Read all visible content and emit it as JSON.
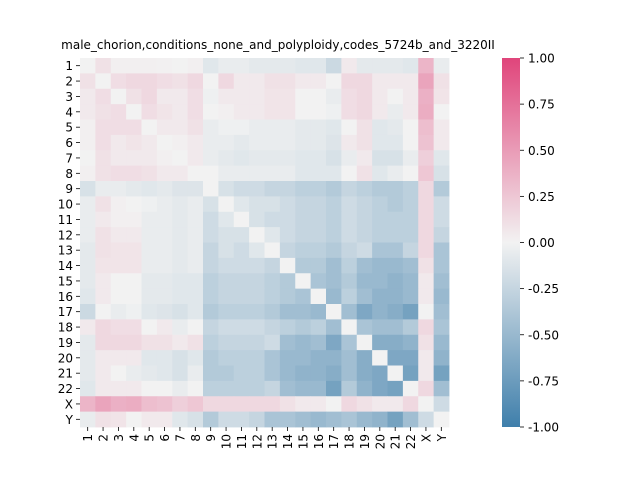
{
  "chart_data": {
    "type": "heatmap",
    "title": "male_chorion,conditions_none_and_polyploidy,codes_5724b_and_3220II",
    "xlabel": "",
    "ylabel": "",
    "labels": [
      "1",
      "2",
      "3",
      "4",
      "5",
      "6",
      "7",
      "8",
      "9",
      "10",
      "11",
      "12",
      "13",
      "14",
      "15",
      "16",
      "17",
      "18",
      "19",
      "20",
      "21",
      "22",
      "X",
      "Y"
    ],
    "colorbar": {
      "vmin": -1.0,
      "vmax": 1.0,
      "ticks": [
        "-1.00",
        "-0.75",
        "-0.50",
        "-0.25",
        "0.00",
        "0.25",
        "0.50",
        "0.75",
        "1.00"
      ],
      "tick_values": [
        -1.0,
        -0.75,
        -0.5,
        -0.25,
        0.0,
        0.25,
        0.5,
        0.75,
        1.0
      ],
      "colors": {
        "negative": "#3f7fab",
        "center": "#f2f2f2",
        "positive": "#e0457b"
      }
    },
    "matrix": [
      [
        0.0,
        0.1,
        0.02,
        0.02,
        0.02,
        0.01,
        0.0,
        0.02,
        -0.1,
        -0.05,
        -0.05,
        -0.08,
        -0.08,
        -0.08,
        -0.1,
        -0.1,
        -0.22,
        0.05,
        -0.08,
        -0.08,
        -0.08,
        -0.1,
        0.35,
        -0.05
      ],
      [
        0.1,
        0.0,
        0.12,
        0.15,
        0.15,
        0.12,
        0.1,
        0.15,
        0.0,
        0.15,
        0.05,
        0.05,
        0.1,
        0.1,
        0.05,
        0.05,
        0.0,
        0.15,
        0.15,
        0.05,
        0.05,
        0.05,
        0.45,
        0.1
      ],
      [
        0.05,
        0.12,
        0.0,
        0.1,
        0.15,
        0.05,
        0.05,
        0.12,
        -0.02,
        0.05,
        0.05,
        0.05,
        0.08,
        0.08,
        0.0,
        0.0,
        -0.05,
        0.12,
        0.15,
        0.05,
        0.0,
        0.05,
        0.38,
        0.08
      ],
      [
        0.05,
        0.1,
        0.12,
        0.0,
        0.12,
        0.08,
        0.05,
        0.12,
        0.0,
        0.02,
        0.05,
        0.05,
        0.08,
        0.08,
        0.0,
        0.0,
        -0.02,
        0.12,
        0.15,
        0.05,
        -0.05,
        0.05,
        0.4,
        0.0
      ],
      [
        0.02,
        0.12,
        0.12,
        0.12,
        0.0,
        0.05,
        0.05,
        0.1,
        -0.05,
        -0.02,
        -0.02,
        -0.05,
        -0.05,
        -0.05,
        -0.08,
        -0.08,
        -0.1,
        0.0,
        0.1,
        -0.1,
        -0.08,
        0.0,
        0.3,
        0.05
      ],
      [
        0.02,
        0.12,
        0.05,
        0.08,
        0.05,
        0.0,
        0.02,
        0.05,
        -0.05,
        -0.05,
        -0.08,
        -0.05,
        -0.05,
        -0.05,
        -0.08,
        -0.08,
        -0.12,
        0.05,
        0.1,
        -0.1,
        -0.1,
        0.0,
        0.28,
        0.05
      ],
      [
        0.0,
        0.1,
        0.05,
        0.05,
        0.05,
        0.02,
        0.0,
        0.05,
        -0.05,
        -0.08,
        -0.1,
        -0.08,
        -0.08,
        -0.08,
        -0.1,
        -0.1,
        -0.15,
        -0.05,
        0.05,
        -0.15,
        -0.15,
        -0.05,
        0.2,
        -0.1
      ],
      [
        0.02,
        0.1,
        0.12,
        0.12,
        0.1,
        0.05,
        0.05,
        0.0,
        0.0,
        -0.05,
        -0.05,
        -0.05,
        -0.05,
        -0.05,
        -0.1,
        -0.1,
        -0.1,
        0.0,
        0.1,
        -0.1,
        -0.05,
        0.0,
        0.25,
        -0.15
      ],
      [
        -0.15,
        -0.05,
        -0.05,
        -0.08,
        -0.1,
        -0.08,
        -0.12,
        -0.12,
        0.0,
        -0.15,
        -0.2,
        -0.2,
        -0.25,
        -0.25,
        -0.3,
        -0.3,
        -0.35,
        -0.25,
        -0.3,
        -0.35,
        -0.35,
        -0.3,
        0.15,
        -0.35
      ],
      [
        -0.05,
        0.1,
        0.02,
        0.0,
        -0.02,
        -0.05,
        -0.08,
        -0.05,
        -0.15,
        0.0,
        -0.1,
        -0.15,
        -0.15,
        -0.2,
        -0.25,
        -0.25,
        -0.3,
        -0.2,
        -0.25,
        -0.3,
        -0.35,
        -0.3,
        0.15,
        -0.2
      ],
      [
        -0.05,
        0.05,
        0.02,
        0.02,
        -0.05,
        -0.05,
        -0.08,
        -0.05,
        -0.2,
        -0.1,
        0.0,
        -0.15,
        -0.2,
        -0.2,
        -0.25,
        -0.25,
        -0.3,
        -0.2,
        -0.25,
        -0.3,
        -0.3,
        -0.3,
        0.15,
        -0.2
      ],
      [
        -0.05,
        0.1,
        0.05,
        0.05,
        -0.05,
        -0.05,
        -0.08,
        -0.05,
        -0.2,
        -0.15,
        -0.15,
        0.0,
        -0.1,
        -0.2,
        -0.25,
        -0.25,
        -0.3,
        -0.2,
        -0.25,
        -0.3,
        -0.3,
        -0.3,
        0.15,
        -0.25
      ],
      [
        -0.08,
        0.1,
        0.08,
        0.08,
        -0.05,
        -0.05,
        -0.08,
        -0.05,
        -0.25,
        -0.15,
        -0.2,
        -0.1,
        0.0,
        -0.25,
        -0.3,
        -0.3,
        -0.35,
        -0.25,
        -0.2,
        -0.4,
        -0.4,
        -0.25,
        0.15,
        -0.4
      ],
      [
        -0.08,
        0.08,
        0.08,
        0.08,
        -0.05,
        -0.05,
        -0.08,
        -0.05,
        -0.25,
        -0.2,
        -0.2,
        -0.2,
        -0.25,
        0.0,
        -0.35,
        -0.35,
        -0.45,
        -0.3,
        -0.45,
        -0.5,
        -0.5,
        -0.45,
        0.1,
        -0.4
      ],
      [
        -0.08,
        0.05,
        0.0,
        0.0,
        -0.08,
        -0.08,
        -0.1,
        -0.1,
        -0.3,
        -0.25,
        -0.25,
        -0.25,
        -0.3,
        -0.35,
        0.0,
        -0.4,
        -0.45,
        -0.35,
        -0.5,
        -0.5,
        -0.55,
        -0.5,
        0.05,
        -0.45
      ],
      [
        -0.1,
        0.05,
        0.0,
        0.0,
        -0.08,
        -0.08,
        -0.1,
        -0.1,
        -0.3,
        -0.25,
        -0.25,
        -0.25,
        -0.3,
        -0.35,
        -0.4,
        0.0,
        -0.5,
        -0.3,
        -0.45,
        -0.55,
        -0.55,
        -0.5,
        0.05,
        -0.5
      ],
      [
        -0.22,
        0.0,
        -0.05,
        -0.02,
        -0.1,
        -0.12,
        -0.15,
        -0.1,
        -0.35,
        -0.3,
        -0.3,
        -0.3,
        -0.35,
        -0.45,
        -0.45,
        -0.5,
        0.0,
        -0.45,
        -0.65,
        -0.55,
        -0.6,
        -0.7,
        0.0,
        -0.45
      ],
      [
        0.05,
        0.15,
        0.12,
        0.12,
        0.0,
        0.05,
        -0.05,
        0.0,
        -0.25,
        -0.2,
        -0.2,
        -0.2,
        -0.25,
        -0.3,
        -0.35,
        -0.3,
        -0.45,
        0.0,
        -0.4,
        -0.45,
        -0.45,
        -0.35,
        0.15,
        -0.4
      ],
      [
        -0.08,
        0.15,
        0.15,
        0.15,
        0.1,
        0.1,
        0.05,
        0.1,
        -0.3,
        -0.25,
        -0.25,
        -0.25,
        -0.2,
        -0.45,
        -0.5,
        -0.45,
        -0.65,
        -0.4,
        0.0,
        -0.6,
        -0.6,
        -0.55,
        0.1,
        -0.5
      ],
      [
        -0.08,
        0.05,
        0.05,
        0.05,
        -0.1,
        -0.1,
        -0.15,
        -0.1,
        -0.35,
        -0.3,
        -0.3,
        -0.3,
        -0.4,
        -0.5,
        -0.5,
        -0.55,
        -0.55,
        -0.45,
        -0.6,
        0.0,
        -0.65,
        -0.65,
        0.05,
        -0.55
      ],
      [
        -0.08,
        0.05,
        0.0,
        -0.05,
        -0.08,
        -0.1,
        -0.15,
        -0.05,
        -0.35,
        -0.35,
        -0.3,
        -0.3,
        -0.4,
        -0.5,
        -0.55,
        -0.55,
        -0.6,
        -0.45,
        -0.6,
        -0.65,
        0.0,
        -0.7,
        0.05,
        -0.7
      ],
      [
        -0.1,
        0.05,
        0.05,
        0.05,
        0.0,
        0.0,
        -0.05,
        0.0,
        -0.3,
        -0.3,
        -0.3,
        -0.3,
        -0.25,
        -0.45,
        -0.5,
        -0.5,
        -0.7,
        -0.35,
        -0.55,
        -0.65,
        -0.7,
        0.0,
        0.15,
        -0.45
      ],
      [
        0.35,
        0.45,
        0.38,
        0.4,
        0.3,
        0.28,
        0.2,
        0.25,
        0.15,
        0.15,
        0.15,
        0.15,
        0.15,
        0.1,
        0.05,
        0.05,
        0.0,
        0.15,
        0.1,
        0.05,
        0.05,
        0.15,
        0.0,
        -0.2
      ],
      [
        -0.05,
        0.1,
        0.08,
        0.0,
        0.05,
        0.05,
        -0.1,
        -0.15,
        -0.35,
        -0.2,
        -0.2,
        -0.25,
        -0.4,
        -0.4,
        -0.45,
        -0.5,
        -0.45,
        -0.4,
        -0.5,
        -0.55,
        -0.7,
        -0.45,
        -0.2,
        0.0
      ]
    ]
  }
}
